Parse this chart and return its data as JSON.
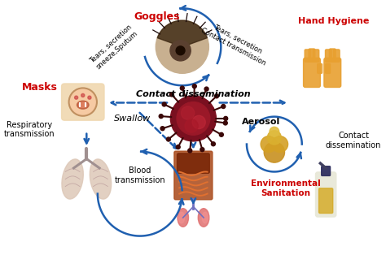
{
  "bg_color": "#ffffff",
  "title_color": "#cc0000",
  "arrow_color": "#2060b0",
  "text_color": "#000000",
  "labels": {
    "goggles": "Goggles",
    "hand_hygiene": "Hand Hygiene",
    "masks": "Masks",
    "respiratory": "Respiratory\ntransmission",
    "blood": "Blood\ntransmission",
    "environmental": "Environmental\nSanitation",
    "aerosol": "Aerosol",
    "contact_dissemination_top": "Contact dissemination",
    "contact_dissemination_right": "Contact\ndissemination",
    "swallow": "Swallow",
    "tears_left": "Tears, secretion\nsneeze,Sputum",
    "tears_right": "Tears, secretion\nContact transmission"
  },
  "figsize": [
    4.74,
    3.14
  ],
  "dpi": 100
}
